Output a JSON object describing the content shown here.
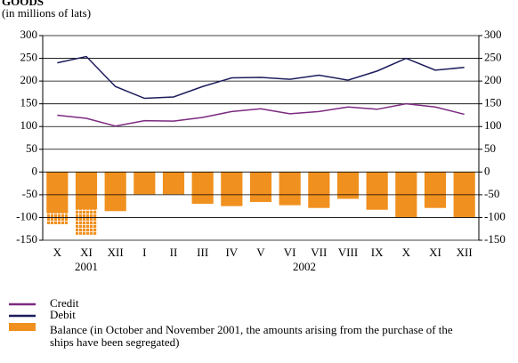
{
  "chart_data": {
    "type": "bar_line",
    "title": "GOODS",
    "subtitle": "(in millions of lats)",
    "categories": [
      "X",
      "XI",
      "XII",
      "I",
      "II",
      "III",
      "IV",
      "V",
      "VI",
      "VII",
      "VIII",
      "IX",
      "X",
      "XI",
      "XII"
    ],
    "x_groups": [
      {
        "label": "2001",
        "from": 0,
        "to": 2
      },
      {
        "label": "2002",
        "from": 3,
        "to": 14
      }
    ],
    "series": [
      {
        "name": "Credit",
        "type": "line",
        "color": "#7b2a80",
        "values": [
          125,
          118,
          101,
          113,
          112,
          120,
          133,
          139,
          128,
          133,
          143,
          138,
          150,
          143,
          127
        ]
      },
      {
        "name": "Debit",
        "type": "line",
        "color": "#1c1c5c",
        "values": [
          240,
          254,
          188,
          162,
          165,
          188,
          207,
          208,
          204,
          213,
          202,
          222,
          250,
          224,
          230
        ]
      },
      {
        "name": "Balance (in October and November 2001, the amounts arising from the purchase of the ships have been segregated)",
        "type": "bar",
        "color": "#f0901e",
        "values": [
          -90,
          -82,
          -86,
          -49,
          -49,
          -70,
          -75,
          -66,
          -73,
          -79,
          -59,
          -83,
          -100,
          -79,
          -100
        ]
      },
      {
        "type": "bar",
        "color": "#f0901e",
        "pattern": "grid",
        "stack_on": 2,
        "values": [
          -25,
          -56,
          null,
          null,
          null,
          null,
          null,
          null,
          null,
          null,
          null,
          null,
          null,
          null,
          null
        ]
      }
    ],
    "ylim": [
      -150,
      300
    ],
    "yticks": [
      -150,
      -100,
      -50,
      0,
      50,
      100,
      150,
      200,
      250,
      300
    ],
    "grid": true
  }
}
